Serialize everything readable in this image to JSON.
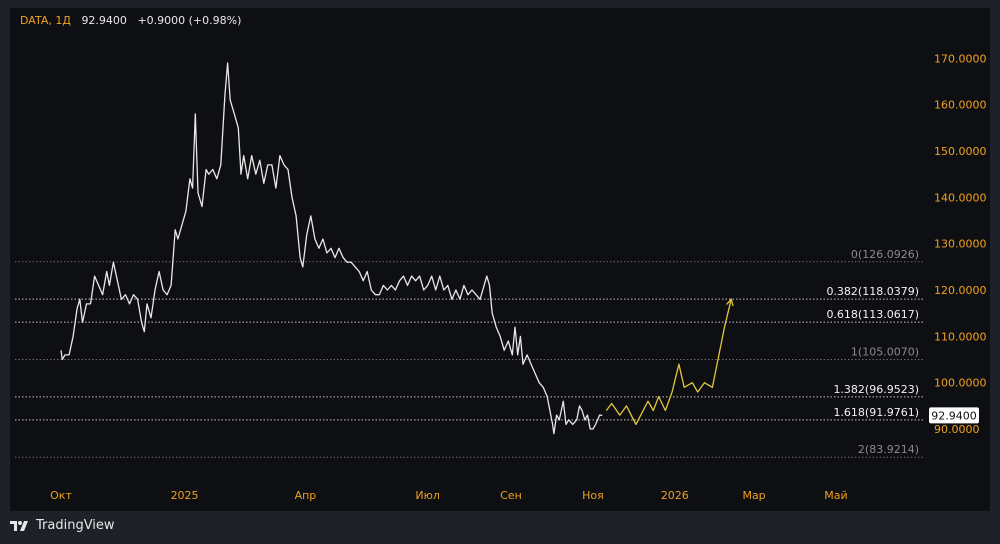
{
  "header": {
    "symbol": "DATA",
    "interval": "1Д",
    "price": "92.9400",
    "change": "+0.9000 (+0.98%)"
  },
  "branding": {
    "name": "TradingView"
  },
  "colors": {
    "price_line": "#e8e8e8",
    "forecast": "#e3c83b",
    "fib_line": "#a9a9a9",
    "header_accent": "#f0a020"
  },
  "chart_data": {
    "type": "line",
    "title": "",
    "xlabel": "",
    "ylabel": "",
    "ylim": [
      79,
      180
    ],
    "y_ticks": [
      "90.0000",
      "100.0000",
      "110.0000",
      "120.0000",
      "130.0000",
      "140.0000",
      "150.0000",
      "160.0000",
      "170.0000"
    ],
    "x_ticks": [
      {
        "label": "Окт",
        "date": "2024-10-01"
      },
      {
        "label": "2025",
        "date": "2025-01-01"
      },
      {
        "label": "Апр",
        "date": "2025-04-01"
      },
      {
        "label": "Июл",
        "date": "2025-07-01"
      },
      {
        "label": "Сен",
        "date": "2025-09-01"
      },
      {
        "label": "Ноя",
        "date": "2025-11-01"
      },
      {
        "label": "2026",
        "date": "2026-01-01"
      },
      {
        "label": "Мар",
        "date": "2026-03-01"
      },
      {
        "label": "Май",
        "date": "2026-05-01"
      }
    ],
    "last_price": {
      "label": "92.9400",
      "value": 92.94
    },
    "fib_levels": [
      {
        "label": "0(126.0926)",
        "value": 126.0926,
        "style": "dim"
      },
      {
        "label": "0.382(118.0379)",
        "value": 118.0379,
        "style": "bright"
      },
      {
        "label": "0.618(113.0617)",
        "value": 113.0617,
        "style": "bright"
      },
      {
        "label": "1(105.0070)",
        "value": 105.007,
        "style": "dim"
      },
      {
        "label": "1.382(96.9523)",
        "value": 96.9523,
        "style": "bright"
      },
      {
        "label": "1.618(91.9761)",
        "value": 91.9761,
        "style": "bright"
      },
      {
        "label": "2(83.9214)",
        "value": 83.9214,
        "style": "dim"
      }
    ],
    "series": [
      {
        "values": [
          [
            "2024-10-01",
            107
          ],
          [
            "2024-10-02",
            105
          ],
          [
            "2024-10-04",
            106
          ],
          [
            "2024-10-07",
            106
          ],
          [
            "2024-10-10",
            110
          ],
          [
            "2024-10-13",
            116
          ],
          [
            "2024-10-15",
            118
          ],
          [
            "2024-10-17",
            113
          ],
          [
            "2024-10-20",
            117
          ],
          [
            "2024-10-23",
            117
          ],
          [
            "2024-10-26",
            123
          ],
          [
            "2024-10-29",
            121
          ],
          [
            "2024-11-01",
            119
          ],
          [
            "2024-11-04",
            124
          ],
          [
            "2024-11-06",
            121
          ],
          [
            "2024-11-09",
            126
          ],
          [
            "2024-11-12",
            122
          ],
          [
            "2024-11-15",
            118
          ],
          [
            "2024-11-18",
            119
          ],
          [
            "2024-11-21",
            117
          ],
          [
            "2024-11-24",
            119
          ],
          [
            "2024-11-27",
            118
          ],
          [
            "2024-11-30",
            113
          ],
          [
            "2024-12-02",
            111
          ],
          [
            "2024-12-04",
            117
          ],
          [
            "2024-12-07",
            114
          ],
          [
            "2024-12-10",
            120
          ],
          [
            "2024-12-13",
            124
          ],
          [
            "2024-12-16",
            120
          ],
          [
            "2024-12-19",
            119
          ],
          [
            "2024-12-22",
            121
          ],
          [
            "2024-12-25",
            133
          ],
          [
            "2024-12-27",
            131
          ],
          [
            "2024-12-30",
            134
          ],
          [
            "2025-01-02",
            137
          ],
          [
            "2025-01-05",
            144
          ],
          [
            "2025-01-07",
            142
          ],
          [
            "2025-01-09",
            158
          ],
          [
            "2025-01-11",
            141
          ],
          [
            "2025-01-14",
            138
          ],
          [
            "2025-01-17",
            146
          ],
          [
            "2025-01-19",
            145
          ],
          [
            "2025-01-22",
            146
          ],
          [
            "2025-01-25",
            144
          ],
          [
            "2025-01-28",
            147
          ],
          [
            "2025-01-31",
            162
          ],
          [
            "2025-02-02",
            169
          ],
          [
            "2025-02-04",
            161
          ],
          [
            "2025-02-07",
            158
          ],
          [
            "2025-02-10",
            155
          ],
          [
            "2025-02-12",
            145
          ],
          [
            "2025-02-14",
            149
          ],
          [
            "2025-02-17",
            144
          ],
          [
            "2025-02-20",
            149
          ],
          [
            "2025-02-23",
            145
          ],
          [
            "2025-02-26",
            148
          ],
          [
            "2025-03-01",
            143
          ],
          [
            "2025-03-04",
            147
          ],
          [
            "2025-03-07",
            147
          ],
          [
            "2025-03-10",
            142
          ],
          [
            "2025-03-13",
            149
          ],
          [
            "2025-03-16",
            147
          ],
          [
            "2025-03-19",
            146
          ],
          [
            "2025-03-22",
            140
          ],
          [
            "2025-03-25",
            136
          ],
          [
            "2025-03-28",
            127
          ],
          [
            "2025-03-30",
            125
          ],
          [
            "2025-04-02",
            132
          ],
          [
            "2025-04-05",
            136
          ],
          [
            "2025-04-08",
            131
          ],
          [
            "2025-04-11",
            129
          ],
          [
            "2025-04-14",
            131
          ],
          [
            "2025-04-17",
            128
          ],
          [
            "2025-04-20",
            129
          ],
          [
            "2025-04-23",
            127
          ],
          [
            "2025-04-26",
            129
          ],
          [
            "2025-04-29",
            127
          ],
          [
            "2025-05-02",
            126
          ],
          [
            "2025-05-05",
            126
          ],
          [
            "2025-05-08",
            125
          ],
          [
            "2025-05-11",
            124
          ],
          [
            "2025-05-14",
            122
          ],
          [
            "2025-05-17",
            124
          ],
          [
            "2025-05-20",
            120
          ],
          [
            "2025-05-23",
            119
          ],
          [
            "2025-05-26",
            119
          ],
          [
            "2025-05-29",
            121
          ],
          [
            "2025-06-01",
            120
          ],
          [
            "2025-06-04",
            121
          ],
          [
            "2025-06-07",
            120
          ],
          [
            "2025-06-10",
            122
          ],
          [
            "2025-06-13",
            123
          ],
          [
            "2025-06-16",
            121
          ],
          [
            "2025-06-19",
            123
          ],
          [
            "2025-06-22",
            122
          ],
          [
            "2025-06-25",
            123
          ],
          [
            "2025-06-28",
            120
          ],
          [
            "2025-07-01",
            121
          ],
          [
            "2025-07-04",
            123
          ],
          [
            "2025-07-07",
            120
          ],
          [
            "2025-07-10",
            123
          ],
          [
            "2025-07-13",
            120
          ],
          [
            "2025-07-16",
            121
          ],
          [
            "2025-07-19",
            118
          ],
          [
            "2025-07-22",
            120
          ],
          [
            "2025-07-25",
            118
          ],
          [
            "2025-07-28",
            121
          ],
          [
            "2025-07-31",
            119
          ],
          [
            "2025-08-03",
            120
          ],
          [
            "2025-08-06",
            119
          ],
          [
            "2025-08-09",
            118
          ],
          [
            "2025-08-12",
            121
          ],
          [
            "2025-08-14",
            123
          ],
          [
            "2025-08-16",
            121
          ],
          [
            "2025-08-18",
            115
          ],
          [
            "2025-08-21",
            112
          ],
          [
            "2025-08-24",
            110
          ],
          [
            "2025-08-27",
            107
          ],
          [
            "2025-08-30",
            109
          ],
          [
            "2025-09-02",
            106
          ],
          [
            "2025-09-04",
            112
          ],
          [
            "2025-09-06",
            106
          ],
          [
            "2025-09-08",
            110
          ],
          [
            "2025-09-10",
            104
          ],
          [
            "2025-09-13",
            106
          ],
          [
            "2025-09-16",
            104
          ],
          [
            "2025-09-19",
            102
          ],
          [
            "2025-09-22",
            100
          ],
          [
            "2025-09-25",
            99
          ],
          [
            "2025-09-28",
            97
          ],
          [
            "2025-09-30",
            94
          ],
          [
            "2025-10-02",
            91
          ],
          [
            "2025-10-03",
            89
          ],
          [
            "2025-10-05",
            93
          ],
          [
            "2025-10-07",
            92
          ],
          [
            "2025-10-10",
            96
          ],
          [
            "2025-10-12",
            91
          ],
          [
            "2025-10-14",
            92
          ],
          [
            "2025-10-17",
            91
          ],
          [
            "2025-10-20",
            92
          ],
          [
            "2025-10-22",
            95
          ],
          [
            "2025-10-24",
            94
          ],
          [
            "2025-10-26",
            92
          ],
          [
            "2025-10-28",
            93
          ],
          [
            "2025-10-30",
            90
          ],
          [
            "2025-11-01",
            90
          ],
          [
            "2025-11-03",
            91
          ],
          [
            "2025-11-06",
            93
          ],
          [
            "2025-11-08",
            92.94
          ]
        ]
      },
      {
        "values": [
          [
            "2025-11-11",
            94
          ],
          [
            "2025-11-15",
            95.5
          ],
          [
            "2025-11-21",
            93
          ],
          [
            "2025-11-26",
            95
          ],
          [
            "2025-12-03",
            91
          ],
          [
            "2025-12-12",
            96
          ],
          [
            "2025-12-16",
            94
          ],
          [
            "2025-12-20",
            97
          ],
          [
            "2025-12-25",
            94
          ],
          [
            "2025-12-30",
            98
          ],
          [
            "2026-01-04",
            104
          ],
          [
            "2026-01-08",
            99
          ],
          [
            "2026-01-14",
            100
          ],
          [
            "2026-01-18",
            98
          ],
          [
            "2026-01-23",
            100
          ],
          [
            "2026-01-29",
            99
          ],
          [
            "2026-02-07",
            112
          ],
          [
            "2026-02-12",
            118
          ]
        ]
      }
    ]
  }
}
